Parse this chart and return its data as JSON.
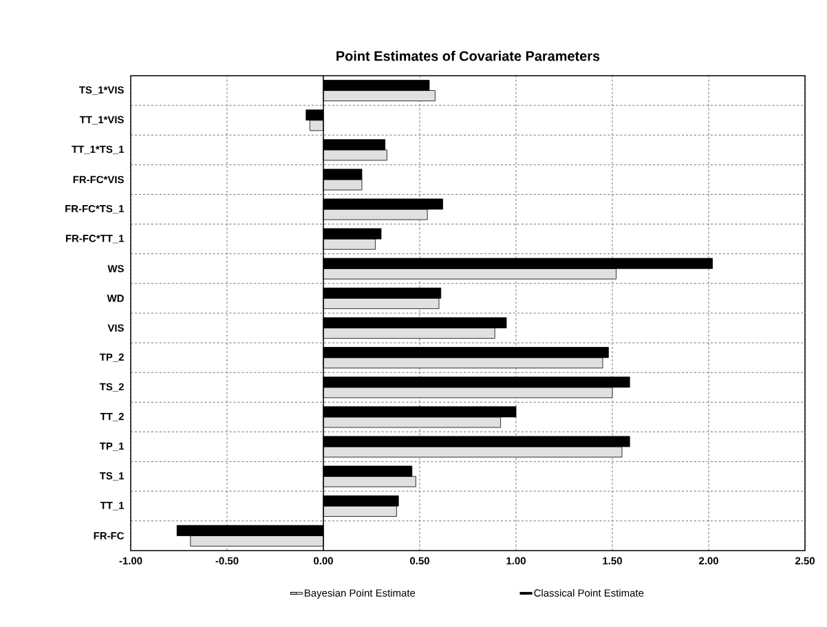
{
  "chart_data": {
    "type": "bar",
    "orientation": "horizontal",
    "title": "Point Estimates of Covariate Parameters",
    "categories": [
      "TS_1*VIS",
      "TT_1*VIS",
      "TT_1*TS_1",
      "FR-FC*VIS",
      "FR-FC*TS_1",
      "FR-FC*TT_1",
      "WS",
      "WD",
      "VIS",
      "TP_2",
      "TS_2",
      "TT_2",
      "TP_1",
      "TS_1",
      "TT_1",
      "FR-FC"
    ],
    "series": [
      {
        "name": "Bayesian Point Estimate",
        "color": "#e0e0e0",
        "values": [
          0.58,
          -0.07,
          0.33,
          0.2,
          0.54,
          0.27,
          1.52,
          0.6,
          0.89,
          1.45,
          1.5,
          0.92,
          1.55,
          0.48,
          0.38,
          -0.69
        ]
      },
      {
        "name": "Classical Point Estimate",
        "color": "#000000",
        "values": [
          0.55,
          -0.09,
          0.32,
          0.2,
          0.62,
          0.3,
          2.02,
          0.61,
          0.95,
          1.48,
          1.59,
          1.0,
          1.59,
          0.46,
          0.39,
          -0.76
        ]
      }
    ],
    "xlim": [
      -1,
      2.5
    ],
    "xticks": [
      {
        "value": -1,
        "label": "-1.00"
      },
      {
        "value": -0.5,
        "label": "-0.50"
      },
      {
        "value": 0,
        "label": "0.00"
      },
      {
        "value": 0.5,
        "label": "0.50"
      },
      {
        "value": 1,
        "label": "1.00"
      },
      {
        "value": 1.5,
        "label": "1.50"
      },
      {
        "value": 2,
        "label": "2.00"
      },
      {
        "value": 2.5,
        "label": "2.50"
      }
    ],
    "grid": true,
    "legend": "bottom"
  }
}
